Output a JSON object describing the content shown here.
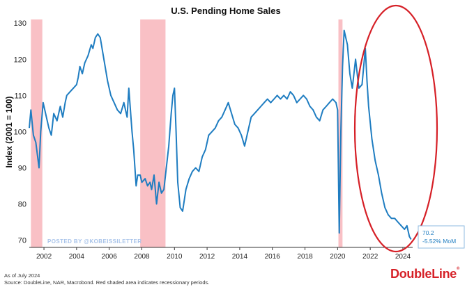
{
  "chart_data": {
    "type": "line",
    "title": "U.S. Pending Home Sales",
    "ylabel": "Index (2001 = 100)",
    "xlabel": "",
    "xlim": [
      2001.1,
      2024.6
    ],
    "ylim": [
      68,
      131
    ],
    "x_ticks": [
      2002,
      2004,
      2006,
      2008,
      2010,
      2012,
      2014,
      2016,
      2018,
      2020,
      2022,
      2024
    ],
    "y_ticks": [
      70,
      80,
      90,
      100,
      110,
      120,
      130
    ],
    "grid": false,
    "legend": "none",
    "series": [
      {
        "color": "#1f7dc1",
        "x": [
          2001.1,
          2001.2,
          2001.35,
          2001.5,
          2001.7,
          2001.8,
          2001.95,
          2002.1,
          2002.3,
          2002.45,
          2002.6,
          2002.8,
          2003.0,
          2003.15,
          2003.3,
          2003.4,
          2003.6,
          2003.8,
          2004.0,
          2004.1,
          2004.2,
          2004.35,
          2004.5,
          2004.7,
          2004.9,
          2005.0,
          2005.15,
          2005.3,
          2005.45,
          2005.6,
          2005.75,
          2005.9,
          2006.1,
          2006.3,
          2006.5,
          2006.7,
          2006.9,
          2007.1,
          2007.2,
          2007.3,
          2007.4,
          2007.5,
          2007.65,
          2007.75,
          2007.9,
          2008.0,
          2008.2,
          2008.35,
          2008.5,
          2008.6,
          2008.75,
          2008.9,
          2009.05,
          2009.2,
          2009.35,
          2009.5,
          2009.65,
          2009.8,
          2009.9,
          2010.0,
          2010.1,
          2010.2,
          2010.35,
          2010.5,
          2010.7,
          2010.9,
          2011.1,
          2011.3,
          2011.5,
          2011.7,
          2011.9,
          2012.1,
          2012.3,
          2012.5,
          2012.7,
          2012.9,
          2013.1,
          2013.3,
          2013.5,
          2013.7,
          2013.9,
          2014.1,
          2014.3,
          2014.5,
          2014.7,
          2014.9,
          2015.1,
          2015.3,
          2015.5,
          2015.7,
          2015.9,
          2016.1,
          2016.3,
          2016.5,
          2016.7,
          2016.9,
          2017.1,
          2017.3,
          2017.5,
          2017.7,
          2017.9,
          2018.1,
          2018.3,
          2018.5,
          2018.7,
          2018.9,
          2019.1,
          2019.3,
          2019.5,
          2019.7,
          2019.9,
          2020.0,
          2020.1,
          2020.2,
          2020.3,
          2020.4,
          2020.5,
          2020.6,
          2020.75,
          2020.9,
          2021.1,
          2021.3,
          2021.5,
          2021.7,
          2021.8,
          2021.9,
          2022.1,
          2022.3,
          2022.5,
          2022.7,
          2022.9,
          2023.1,
          2023.3,
          2023.5,
          2023.7,
          2023.9,
          2024.1,
          2024.25,
          2024.4,
          2024.5
        ],
        "y": [
          101,
          106,
          99,
          97,
          90,
          100,
          108,
          105,
          101,
          99,
          105,
          103,
          107,
          104,
          108,
          110,
          111,
          112,
          113,
          115,
          118,
          116,
          119,
          121,
          124,
          123,
          126,
          127,
          126,
          122,
          118,
          114,
          110,
          108,
          106,
          105,
          108,
          104,
          112,
          106,
          100,
          95,
          85,
          88,
          88,
          86,
          87,
          85,
          86,
          84,
          88,
          80,
          86,
          83,
          84,
          90,
          96,
          105,
          110,
          112,
          100,
          86,
          79,
          78,
          84,
          87,
          89,
          90,
          89,
          93,
          95,
          99,
          100,
          101,
          103,
          104,
          106,
          108,
          105,
          102,
          101,
          99,
          96,
          100,
          104,
          105,
          106,
          107,
          108,
          109,
          108,
          109,
          110,
          109,
          110,
          109,
          111,
          110,
          108,
          109,
          110,
          109,
          107,
          106,
          104,
          103,
          106,
          107,
          108,
          109,
          108,
          106,
          72,
          100,
          118,
          128,
          126,
          124,
          116,
          112,
          120,
          112,
          113,
          123,
          114,
          107,
          98,
          92,
          88,
          83,
          79,
          77,
          76,
          76,
          75,
          74,
          73,
          74,
          71,
          70.2
        ]
      }
    ],
    "recessions": [
      [
        2001.2,
        2001.9
      ],
      [
        2007.9,
        2009.45
      ],
      [
        2020.05,
        2020.3
      ]
    ],
    "end_label": {
      "value": "70.2",
      "change": "-5.52% MoM"
    },
    "watermark": "POSTED BY @KOBEISSILETTER",
    "highlight": "red-ellipse-2022-2024"
  },
  "footer": {
    "as_of": "As of July 2024",
    "source": "Source: DoubleLine, NAR, Macrobond. Red shaded area indicates recessionary periods.",
    "brand": "DoubleLine",
    "brand_mark": "®"
  },
  "colors": {
    "line": "#1f7dc1",
    "recession": "#f9c0c5",
    "highlight": "#d62027",
    "brand": "#d62027",
    "end_label": "#1f7dc1",
    "watermark": "#a9c4ea"
  }
}
